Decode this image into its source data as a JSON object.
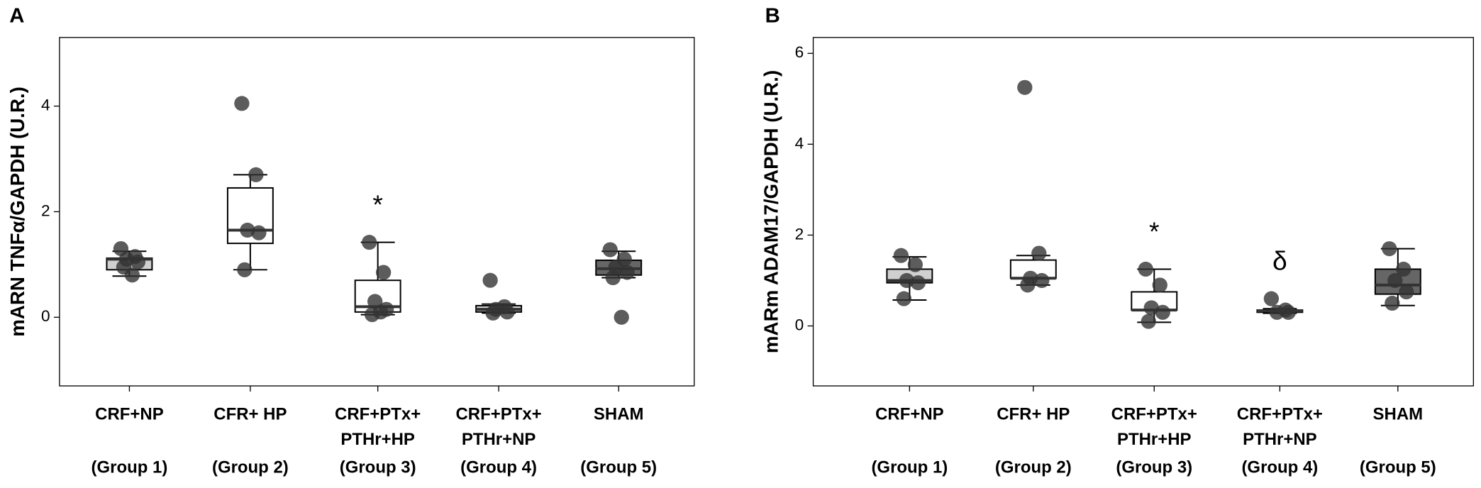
{
  "chart_data": [
    {
      "type": "box",
      "panel": "A",
      "ylabel": "mARN TNFα/GAPDH (U.R.)",
      "ylim": [
        -1.3,
        5.3
      ],
      "yticks": [
        0,
        2,
        4
      ],
      "categories": [
        [
          "CRF+NP"
        ],
        [
          "CFR+ HP"
        ],
        [
          "CRF+PTx+",
          "PTHr+HP"
        ],
        [
          "CRF+PTx+",
          "PTHr+NP"
        ],
        [
          "SHAM"
        ]
      ],
      "groups": [
        "(Group 1)",
        "(Group 2)",
        "(Group 3)",
        "(Group 4)",
        "(Group 5)"
      ],
      "boxes": [
        {
          "fill": "#d0d0d0",
          "low": 0.78,
          "q1": 0.9,
          "median": 1.1,
          "q3": 1.12,
          "high": 1.25,
          "points": [
            1.3,
            1.15,
            1.1,
            1.05,
            0.95,
            0.8
          ]
        },
        {
          "fill": "#ffffff",
          "low": 0.9,
          "q1": 1.4,
          "median": 1.65,
          "q3": 2.45,
          "high": 2.7,
          "points": [
            4.05,
            2.7,
            1.65,
            1.6,
            0.9
          ]
        },
        {
          "fill": "#ffffff",
          "low": 0.05,
          "q1": 0.1,
          "median": 0.2,
          "q3": 0.7,
          "high": 1.42,
          "points": [
            1.42,
            0.85,
            0.3,
            0.15,
            0.05,
            0.1
          ],
          "annotation": "*"
        },
        {
          "fill": "#cccccc",
          "low": 0.08,
          "q1": 0.1,
          "median": 0.15,
          "q3": 0.22,
          "high": 0.25,
          "points": [
            0.7,
            0.2,
            0.15,
            0.1,
            0.08
          ]
        },
        {
          "fill": "#666666",
          "low": 0.75,
          "q1": 0.8,
          "median": 0.92,
          "q3": 1.08,
          "high": 1.25,
          "points": [
            1.28,
            1.1,
            0.95,
            0.85,
            0.75,
            0.0
          ]
        }
      ]
    },
    {
      "type": "box",
      "panel": "B",
      "ylabel": "mARm ADAM17/GAPDH (U.R.)",
      "ylim": [
        -1.32,
        6.35
      ],
      "yticks": [
        0,
        2,
        4,
        6
      ],
      "categories": [
        [
          "CRF+NP"
        ],
        [
          "CFR+ HP"
        ],
        [
          "CRF+PTx+",
          "PTHr+HP"
        ],
        [
          "CRF+PTx+",
          "PTHr+NP"
        ],
        [
          "SHAM"
        ]
      ],
      "groups": [
        "(Group 1)",
        "(Group 2)",
        "(Group 3)",
        "(Group 4)",
        "(Group 5)"
      ],
      "boxes": [
        {
          "fill": "#d0d0d0",
          "low": 0.57,
          "q1": 0.95,
          "median": 1.0,
          "q3": 1.25,
          "high": 1.52,
          "points": [
            1.55,
            1.35,
            1.0,
            0.95,
            0.6
          ]
        },
        {
          "fill": "#ffffff",
          "low": 0.9,
          "q1": 1.05,
          "median": 1.05,
          "q3": 1.45,
          "high": 1.55,
          "points": [
            5.25,
            1.6,
            1.05,
            1.0,
            0.9
          ]
        },
        {
          "fill": "#ffffff",
          "low": 0.08,
          "q1": 0.35,
          "median": 0.35,
          "q3": 0.75,
          "high": 1.25,
          "points": [
            1.25,
            0.9,
            0.4,
            0.3,
            0.1
          ],
          "annotation": "*"
        },
        {
          "fill": "#cccccc",
          "low": 0.28,
          "q1": 0.3,
          "median": 0.33,
          "q3": 0.35,
          "high": 0.38,
          "points": [
            0.6,
            0.35,
            0.3,
            0.3
          ],
          "annotation": "δ"
        },
        {
          "fill": "#666666",
          "low": 0.45,
          "q1": 0.7,
          "median": 0.9,
          "q3": 1.25,
          "high": 1.7,
          "points": [
            1.7,
            1.25,
            1.0,
            0.75,
            0.5
          ]
        }
      ]
    }
  ]
}
